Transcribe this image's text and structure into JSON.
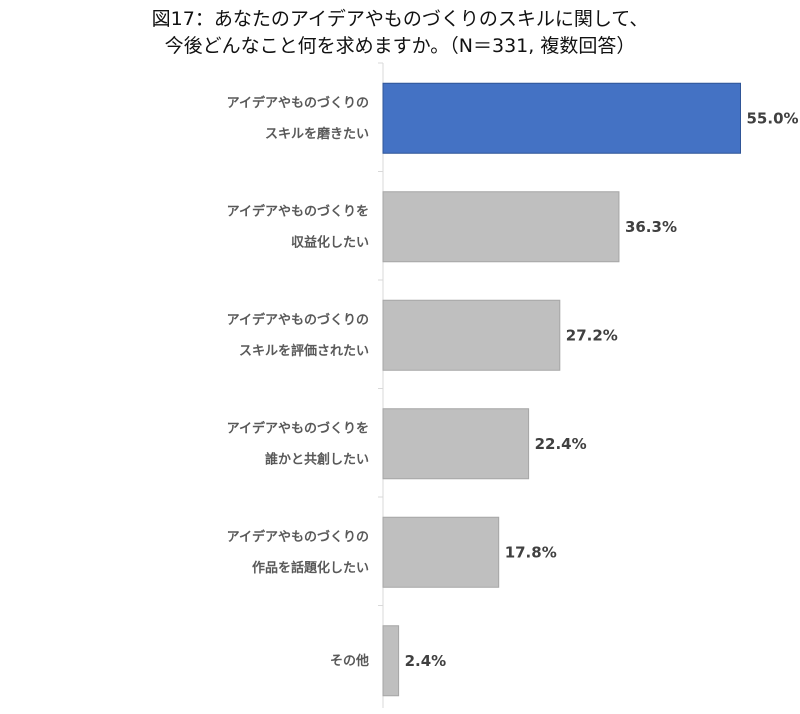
{
  "chart_data": {
    "type": "bar",
    "orientation": "horizontal",
    "title": [
      "図17：あなたのアイデアやものづくりのスキルに関して、",
      "今後どんなこと何を求めますか。（N＝331, 複数回答）"
    ],
    "categories": [
      [
        "アイデアやものづくりの",
        "スキルを磨きたい"
      ],
      [
        "アイデアやものづくりを",
        "収益化したい"
      ],
      [
        "アイデアやものづくりの",
        "スキルを評価されたい"
      ],
      [
        "アイデアやものづくりを",
        "誰かと共創したい"
      ],
      [
        "アイデアやものづくりの",
        "作品を話題化したい"
      ],
      [
        "その他"
      ]
    ],
    "values": [
      55.0,
      36.3,
      27.2,
      22.4,
      17.8,
      2.4
    ],
    "value_labels": [
      "55.0%",
      "36.3%",
      "27.2%",
      "22.4%",
      "17.8%",
      "2.4%"
    ],
    "xlim": [
      0,
      60
    ],
    "colors": {
      "highlight": "#4472C4",
      "highlight_border": "#2F5597",
      "default": "#BFBFBF",
      "default_border": "#A6A6A6",
      "axis": "#D9D9D9"
    },
    "highlight_index": 0,
    "grid": false,
    "legend": "none"
  }
}
